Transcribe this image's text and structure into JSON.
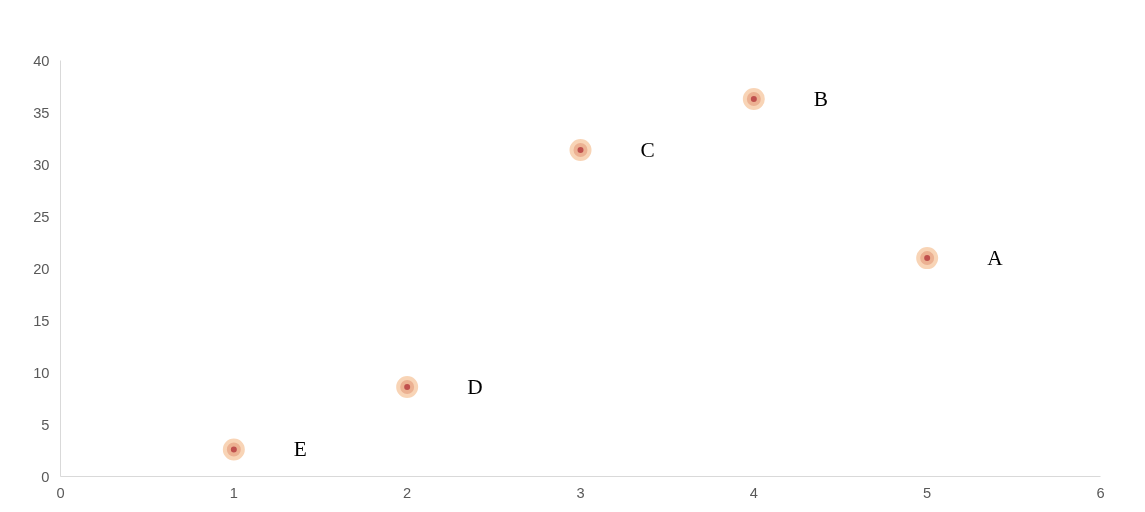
{
  "chart_data": {
    "type": "scatter",
    "x": [
      1,
      2,
      3,
      4,
      5
    ],
    "values": [
      2.6,
      8.6,
      31.4,
      36.3,
      21.0
    ],
    "color": "#c0504d",
    "marker": "circle",
    "grid": false,
    "xlim": [
      0,
      6
    ],
    "xticks": [
      0,
      1,
      2,
      3,
      4,
      5,
      6
    ],
    "ylim": [
      0,
      40
    ],
    "yticks": [
      0,
      5,
      10,
      15,
      20,
      25,
      30,
      35,
      40
    ],
    "annotations": [
      {
        "text": "E",
        "x": 1,
        "y": 2.6
      },
      {
        "text": "D",
        "x": 2,
        "y": 8.6
      },
      {
        "text": "C",
        "x": 3,
        "y": 31.4
      },
      {
        "text": "B",
        "x": 4,
        "y": 36.3
      },
      {
        "text": "A",
        "x": 5,
        "y": 21.0
      }
    ]
  }
}
